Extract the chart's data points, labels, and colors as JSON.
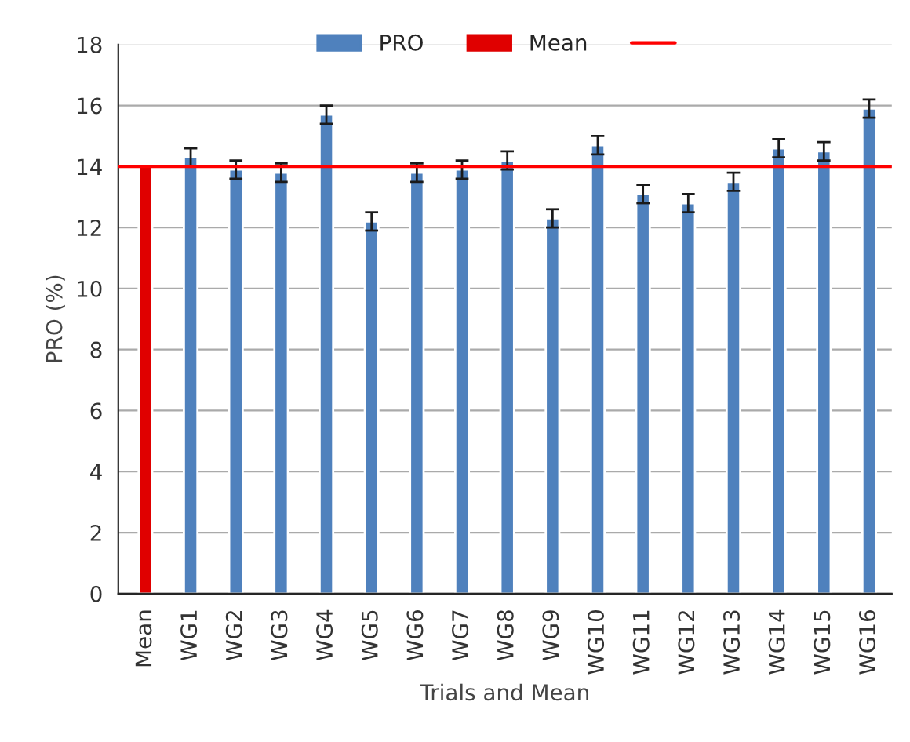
{
  "chart_data": {
    "type": "bar",
    "xlabel": "Trials and Mean",
    "ylabel": "PRO (%)",
    "categories": [
      "Mean",
      "WG1",
      "WG2",
      "WG3",
      "WG4",
      "WG5",
      "WG6",
      "WG7",
      "WG8",
      "WG9",
      "WG10",
      "WG11",
      "WG12",
      "WG13",
      "WG14",
      "WG15",
      "WG16"
    ],
    "series": [
      {
        "name": "PRO",
        "color": "#4f81bd",
        "values": [
          null,
          14.3,
          13.9,
          13.8,
          15.7,
          12.2,
          13.8,
          13.9,
          14.2,
          12.3,
          14.7,
          13.1,
          12.8,
          13.5,
          14.6,
          14.5,
          15.9
        ],
        "errors": [
          null,
          0.3,
          0.3,
          0.3,
          0.3,
          0.3,
          0.3,
          0.3,
          0.3,
          0.3,
          0.3,
          0.3,
          0.3,
          0.3,
          0.3,
          0.3,
          0.3
        ]
      },
      {
        "name": "Mean",
        "color": "#e00000",
        "values": [
          14,
          null,
          null,
          null,
          null,
          null,
          null,
          null,
          null,
          null,
          null,
          null,
          null,
          null,
          null,
          null,
          null
        ]
      }
    ],
    "ref_lines": [
      {
        "axis": "y",
        "value": 14,
        "color": "#ff0000"
      }
    ],
    "ylim": [
      0,
      18
    ],
    "yticks": [
      0,
      2,
      4,
      6,
      8,
      10,
      12,
      14,
      16,
      18
    ],
    "grid": "y",
    "legend": "top"
  }
}
